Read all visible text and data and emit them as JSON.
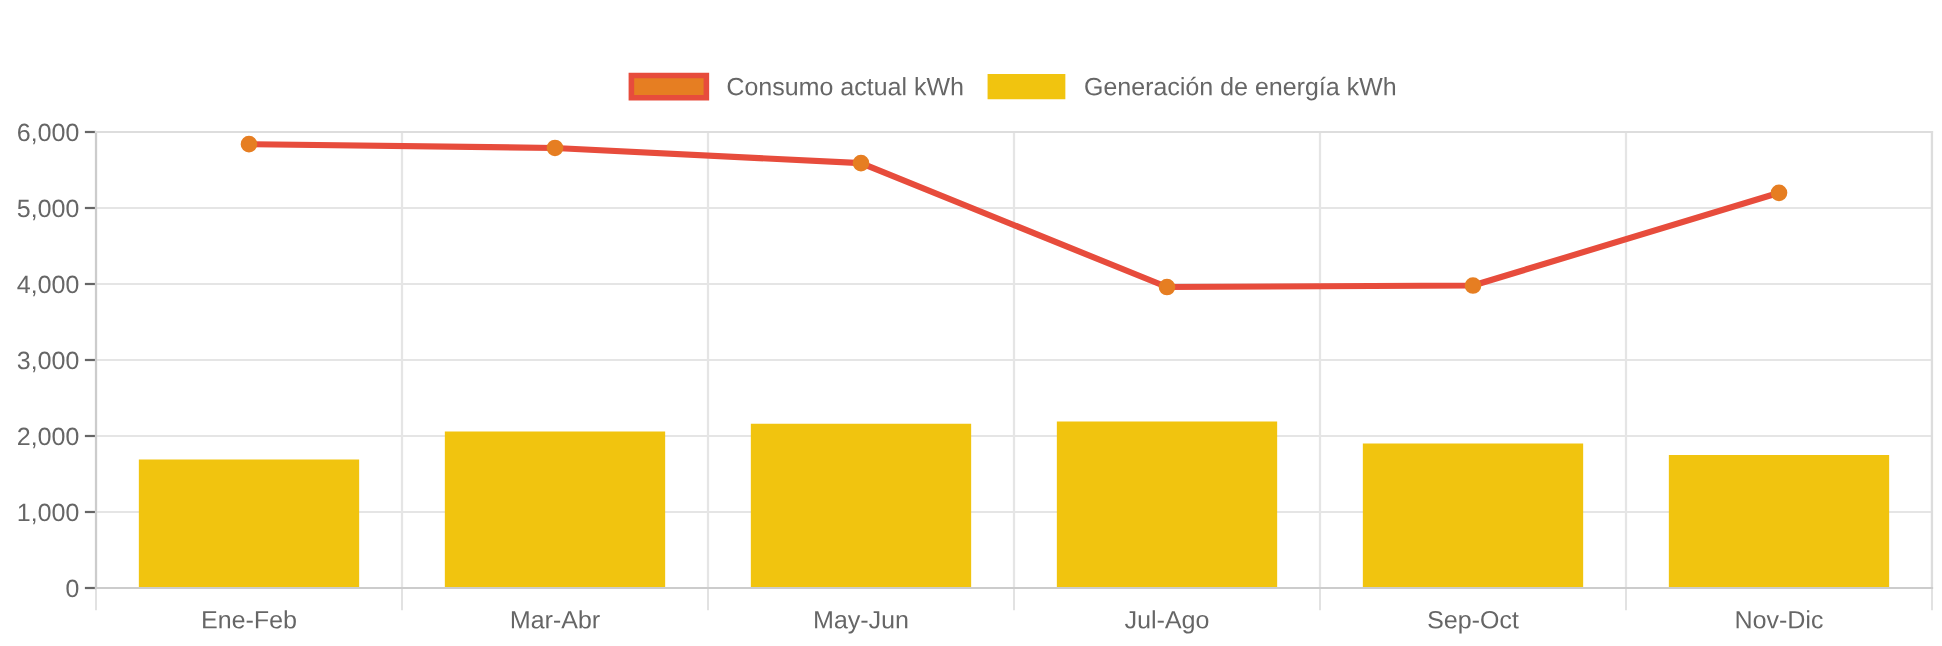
{
  "chart_data": {
    "type": "bar",
    "categories": [
      "Ene-Feb",
      "Mar-Abr",
      "May-Jun",
      "Jul-Ago",
      "Sep-Oct",
      "Nov-Dic"
    ],
    "series": [
      {
        "name": "Consumo actual kWh",
        "type": "line",
        "color": "#e74c3c",
        "marker": "circle",
        "values": [
          5840,
          5790,
          5590,
          3960,
          3980,
          5200
        ]
      },
      {
        "name": "Generación de energía kWh",
        "color": "#f1c40f",
        "values": [
          1690,
          2060,
          2160,
          2190,
          1900,
          1750
        ]
      }
    ],
    "ylim": [
      0,
      6000
    ],
    "yticks": [
      0,
      {
        "value": 1000,
        "label": "1,000"
      },
      {
        "value": 2000,
        "label": "2,000"
      },
      {
        "value": 3000,
        "label": "3,000"
      },
      {
        "value": 4000,
        "label": "4,000"
      },
      {
        "value": 5000,
        "label": "5,000"
      },
      {
        "value": 6000,
        "label": "6,000"
      }
    ],
    "grid": true,
    "legend": "top"
  }
}
